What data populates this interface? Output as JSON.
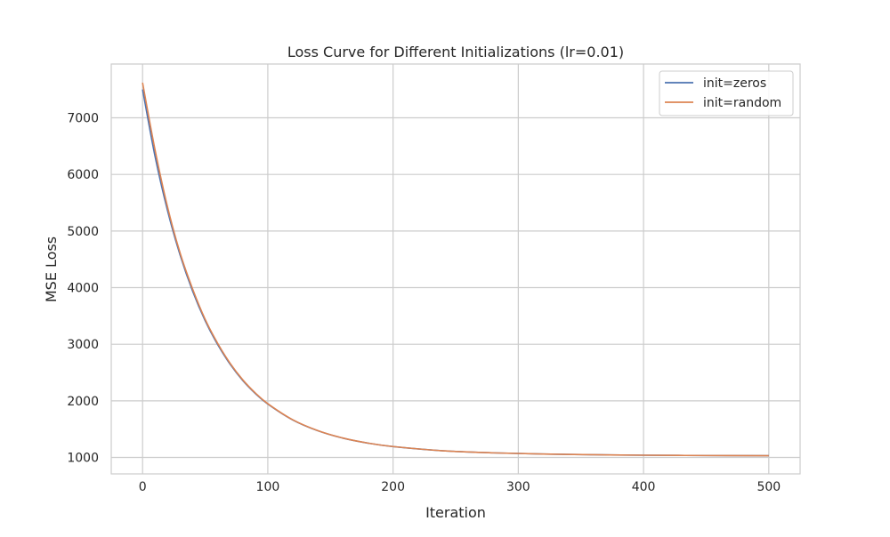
{
  "chart_data": {
    "type": "line",
    "title": "Loss Curve for Different Initializations (lr=0.01)",
    "xlabel": "Iteration",
    "ylabel": "MSE Loss",
    "xlim": [
      -25,
      525
    ],
    "ylim": [
      710,
      7950
    ],
    "xticks": [
      0,
      100,
      200,
      300,
      400,
      500
    ],
    "yticks": [
      1000,
      2000,
      3000,
      4000,
      5000,
      6000,
      7000
    ],
    "grid": true,
    "legend_position": "top-right",
    "x": [
      0,
      10,
      20,
      30,
      40,
      50,
      60,
      70,
      80,
      90,
      100,
      120,
      140,
      160,
      180,
      200,
      240,
      280,
      320,
      360,
      400,
      450,
      500
    ],
    "series": [
      {
        "name": "init=zeros",
        "color": "#4c72b0",
        "values": [
          7500,
          6315,
          5355,
          4573,
          3936,
          3415,
          2993,
          2645,
          2360,
          2131,
          1943,
          1661,
          1471,
          1341,
          1253,
          1192,
          1118,
          1081,
          1060,
          1048,
          1040,
          1034,
          1031
        ]
      },
      {
        "name": "init=random",
        "color": "#dd8452",
        "values": [
          7620,
          6430,
          5420,
          4610,
          3975,
          3440,
          3015,
          2660,
          2372,
          2140,
          1950,
          1665,
          1474,
          1343,
          1254,
          1193,
          1118,
          1081,
          1060,
          1048,
          1040,
          1034,
          1031
        ]
      }
    ]
  }
}
